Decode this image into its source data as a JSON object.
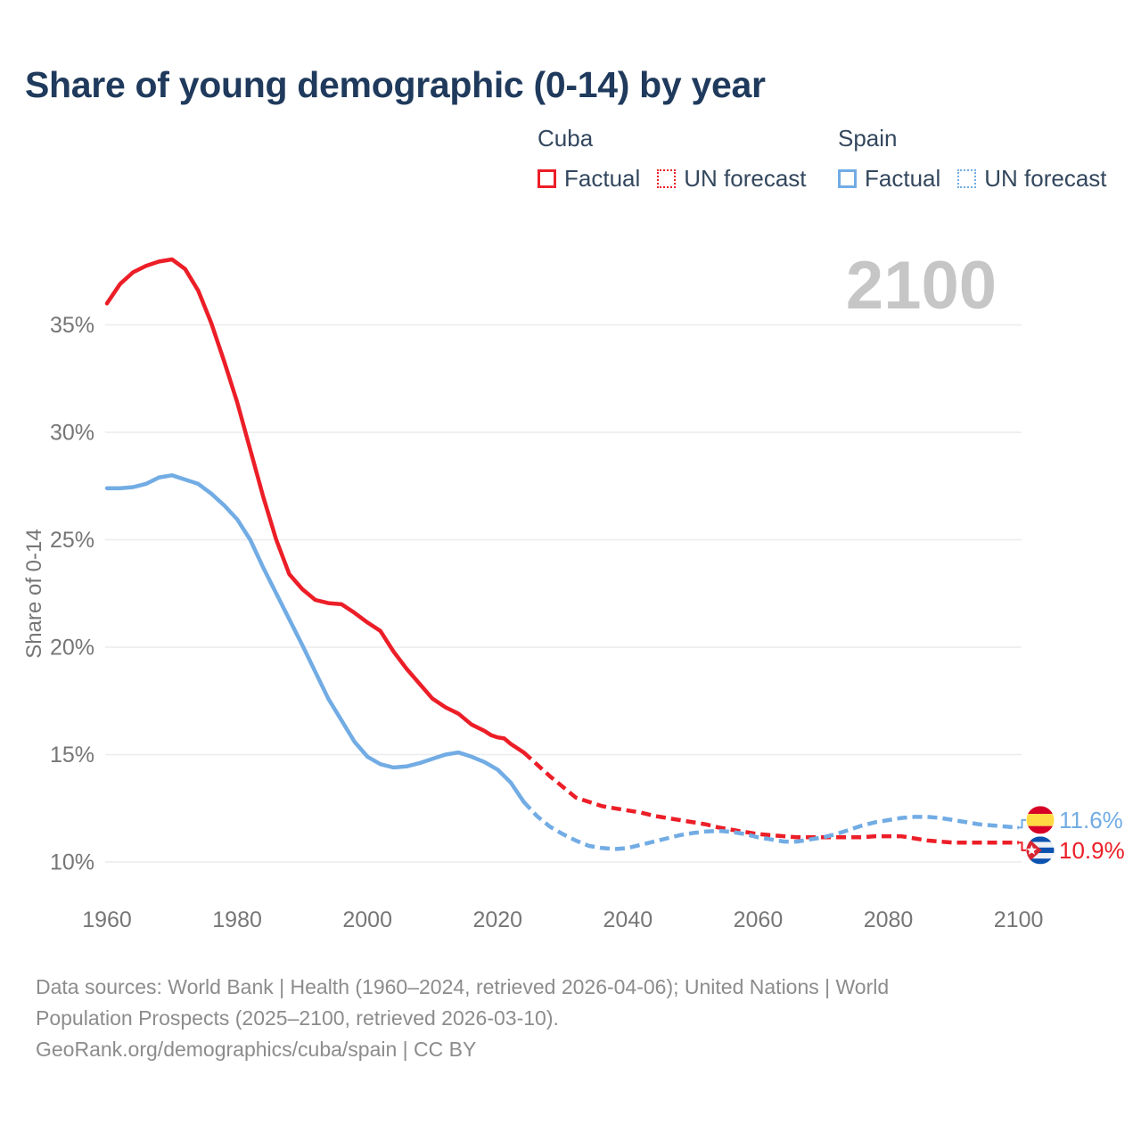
{
  "title": "Share of young demographic (0-14) by year",
  "watermark": "2100",
  "legend": {
    "groups": [
      {
        "name": "Cuba",
        "color": "#ec1e27",
        "items": [
          {
            "label": "Factual",
            "style": "solid"
          },
          {
            "label": "UN forecast",
            "style": "dotted"
          }
        ]
      },
      {
        "name": "Spain",
        "color": "#72ace4",
        "items": [
          {
            "label": "Factual",
            "style": "solid"
          },
          {
            "label": "UN forecast",
            "style": "dotted"
          }
        ]
      }
    ]
  },
  "chart_data": {
    "type": "line",
    "title": "Share of young demographic (0-14) by year",
    "xlabel": "",
    "ylabel": "Share of 0-14",
    "xlim": [
      1958,
      2119
    ],
    "ylim": [
      9,
      38.5
    ],
    "grid": true,
    "legend_position": "top-right",
    "x_ticks": [
      1960,
      1980,
      2000,
      2020,
      2040,
      2060,
      2080,
      2100
    ],
    "y_ticks": [
      {
        "value": 35,
        "label": "35%"
      },
      {
        "value": 30,
        "label": "30%"
      },
      {
        "value": 25,
        "label": "25%"
      },
      {
        "value": 20,
        "label": "20%"
      },
      {
        "value": 15,
        "label": "15%"
      },
      {
        "value": 10,
        "label": "10%"
      }
    ],
    "colors": {
      "grid": "#ececec",
      "axis_text": "#767676",
      "watermark": "#c6c6c6"
    },
    "series": [
      {
        "id": "cuba-factual",
        "name": "Cuba Factual",
        "color": "#ec1e27",
        "dash": "solid",
        "points": [
          [
            1960,
            36.0
          ],
          [
            1962,
            36.9
          ],
          [
            1964,
            37.45
          ],
          [
            1966,
            37.75
          ],
          [
            1968,
            37.95
          ],
          [
            1970,
            38.05
          ],
          [
            1972,
            37.6
          ],
          [
            1974,
            36.6
          ],
          [
            1976,
            35.1
          ],
          [
            1978,
            33.3
          ],
          [
            1980,
            31.4
          ],
          [
            1982,
            29.2
          ],
          [
            1984,
            27.0
          ],
          [
            1986,
            25.0
          ],
          [
            1988,
            23.4
          ],
          [
            1990,
            22.7
          ],
          [
            1992,
            22.2
          ],
          [
            1994,
            22.05
          ],
          [
            1996,
            22.0
          ],
          [
            1998,
            21.6
          ],
          [
            2000,
            21.15
          ],
          [
            2002,
            20.75
          ],
          [
            2004,
            19.8
          ],
          [
            2006,
            19.0
          ],
          [
            2008,
            18.3
          ],
          [
            2010,
            17.6
          ],
          [
            2012,
            17.2
          ],
          [
            2014,
            16.9
          ],
          [
            2016,
            16.4
          ],
          [
            2018,
            16.1
          ],
          [
            2019,
            15.9
          ],
          [
            2020,
            15.8
          ],
          [
            2021,
            15.75
          ],
          [
            2022,
            15.5
          ],
          [
            2024,
            15.1
          ]
        ]
      },
      {
        "id": "cuba-forecast",
        "name": "Cuba UN forecast",
        "color": "#ec1e27",
        "dash": "dashed",
        "points": [
          [
            2024,
            15.1
          ],
          [
            2026,
            14.55
          ],
          [
            2028,
            14.0
          ],
          [
            2030,
            13.5
          ],
          [
            2032,
            13.0
          ],
          [
            2034,
            12.8
          ],
          [
            2036,
            12.6
          ],
          [
            2038,
            12.5
          ],
          [
            2040,
            12.4
          ],
          [
            2042,
            12.3
          ],
          [
            2044,
            12.15
          ],
          [
            2046,
            12.05
          ],
          [
            2048,
            11.95
          ],
          [
            2050,
            11.85
          ],
          [
            2052,
            11.75
          ],
          [
            2054,
            11.6
          ],
          [
            2056,
            11.5
          ],
          [
            2058,
            11.4
          ],
          [
            2060,
            11.3
          ],
          [
            2062,
            11.25
          ],
          [
            2064,
            11.2
          ],
          [
            2066,
            11.15
          ],
          [
            2068,
            11.15
          ],
          [
            2070,
            11.15
          ],
          [
            2072,
            11.15
          ],
          [
            2074,
            11.15
          ],
          [
            2076,
            11.15
          ],
          [
            2078,
            11.2
          ],
          [
            2080,
            11.2
          ],
          [
            2082,
            11.2
          ],
          [
            2084,
            11.1
          ],
          [
            2086,
            11.0
          ],
          [
            2088,
            10.95
          ],
          [
            2090,
            10.9
          ],
          [
            2092,
            10.9
          ],
          [
            2094,
            10.9
          ],
          [
            2096,
            10.9
          ],
          [
            2098,
            10.9
          ],
          [
            2100,
            10.9
          ]
        ]
      },
      {
        "id": "spain-factual",
        "name": "Spain Factual",
        "color": "#72ace4",
        "dash": "solid",
        "points": [
          [
            1960,
            27.4
          ],
          [
            1962,
            27.4
          ],
          [
            1964,
            27.45
          ],
          [
            1966,
            27.6
          ],
          [
            1968,
            27.9
          ],
          [
            1970,
            28.0
          ],
          [
            1972,
            27.8
          ],
          [
            1974,
            27.6
          ],
          [
            1976,
            27.15
          ],
          [
            1978,
            26.6
          ],
          [
            1980,
            25.95
          ],
          [
            1982,
            25.0
          ],
          [
            1984,
            23.7
          ],
          [
            1986,
            22.5
          ],
          [
            1988,
            21.3
          ],
          [
            1990,
            20.1
          ],
          [
            1992,
            18.85
          ],
          [
            1994,
            17.6
          ],
          [
            1996,
            16.6
          ],
          [
            1998,
            15.6
          ],
          [
            2000,
            14.9
          ],
          [
            2002,
            14.55
          ],
          [
            2004,
            14.4
          ],
          [
            2006,
            14.45
          ],
          [
            2008,
            14.6
          ],
          [
            2010,
            14.8
          ],
          [
            2012,
            15.0
          ],
          [
            2014,
            15.1
          ],
          [
            2016,
            14.9
          ],
          [
            2018,
            14.65
          ],
          [
            2020,
            14.3
          ],
          [
            2022,
            13.7
          ],
          [
            2024,
            12.8
          ]
        ]
      },
      {
        "id": "spain-forecast",
        "name": "Spain UN forecast",
        "color": "#72ace4",
        "dash": "dashed",
        "points": [
          [
            2024,
            12.8
          ],
          [
            2026,
            12.15
          ],
          [
            2028,
            11.65
          ],
          [
            2030,
            11.3
          ],
          [
            2032,
            11.0
          ],
          [
            2034,
            10.75
          ],
          [
            2036,
            10.65
          ],
          [
            2038,
            10.6
          ],
          [
            2040,
            10.65
          ],
          [
            2042,
            10.8
          ],
          [
            2044,
            10.95
          ],
          [
            2046,
            11.1
          ],
          [
            2048,
            11.25
          ],
          [
            2050,
            11.35
          ],
          [
            2052,
            11.42
          ],
          [
            2054,
            11.45
          ],
          [
            2056,
            11.4
          ],
          [
            2058,
            11.3
          ],
          [
            2060,
            11.15
          ],
          [
            2062,
            11.05
          ],
          [
            2064,
            10.95
          ],
          [
            2066,
            10.95
          ],
          [
            2068,
            11.05
          ],
          [
            2070,
            11.15
          ],
          [
            2072,
            11.3
          ],
          [
            2074,
            11.5
          ],
          [
            2076,
            11.7
          ],
          [
            2078,
            11.85
          ],
          [
            2080,
            11.95
          ],
          [
            2082,
            12.05
          ],
          [
            2084,
            12.1
          ],
          [
            2086,
            12.1
          ],
          [
            2088,
            12.05
          ],
          [
            2090,
            11.95
          ],
          [
            2092,
            11.85
          ],
          [
            2094,
            11.75
          ],
          [
            2096,
            11.7
          ],
          [
            2098,
            11.65
          ],
          [
            2100,
            11.6
          ]
        ]
      }
    ],
    "end_labels": [
      {
        "flag": "spain",
        "text": "11.6%",
        "value": 11.6,
        "color": "#72ace4"
      },
      {
        "flag": "cuba",
        "text": "10.9%",
        "value": 10.9,
        "color": "#ec1e27"
      }
    ],
    "flag_colors": {
      "spain": {
        "red": "#d80027",
        "yellow": "#ffda44"
      },
      "cuba": {
        "blue": "#0b52b0",
        "white": "#eef2f7",
        "red": "#d82633",
        "star": "#ffffff"
      }
    }
  },
  "footer": {
    "lines": [
      "Data sources: World Bank | Health (1960–2024, retrieved 2026-04-06); United Nations | World",
      "Population Prospects (2025–2100, retrieved 2026-03-10).",
      "GeoRank.org/demographics/cuba/spain | CC BY"
    ]
  }
}
